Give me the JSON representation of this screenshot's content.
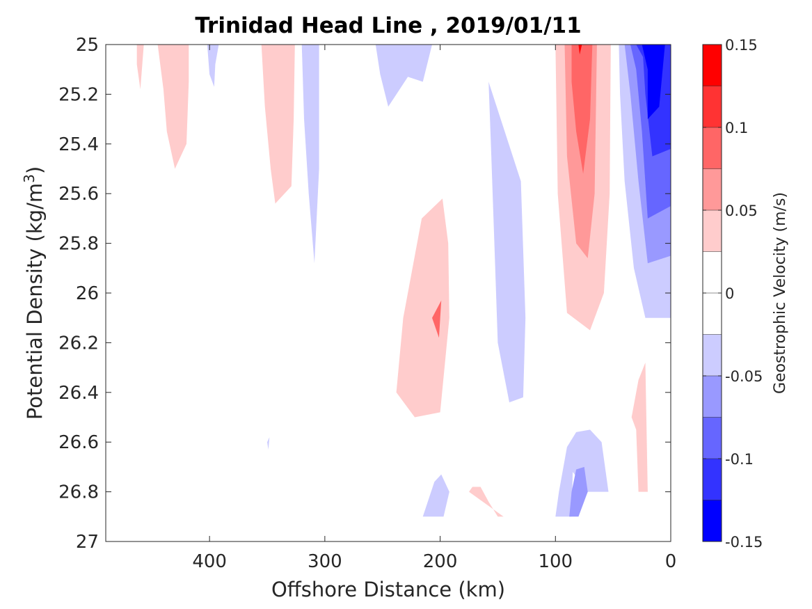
{
  "chart_data": {
    "type": "contour",
    "title": "Trinidad Head Line , 2019/01/11",
    "xlabel": "Offshore Distance (km)",
    "ylabel_main": "Potential Density (kg/m",
    "ylabel_sup": "3",
    "ylabel_close": ")",
    "xlim": [
      490,
      0
    ],
    "ylim": [
      25,
      27
    ],
    "x_reversed": true,
    "y_reversed": true,
    "x_ticks": [
      400,
      300,
      200,
      100,
      0
    ],
    "x_tick_labels": [
      "400",
      "300",
      "200",
      "100",
      "0"
    ],
    "y_ticks": [
      25,
      25.2,
      25.4,
      25.6,
      25.8,
      26,
      26.2,
      26.4,
      26.6,
      26.8,
      27
    ],
    "y_tick_labels": [
      "25",
      "25.2",
      "25.4",
      "25.6",
      "25.8",
      "26",
      "26.2",
      "26.4",
      "26.6",
      "26.8",
      "27"
    ],
    "colorbar": {
      "label": "Geostrophic Velocity (m/s)",
      "range": [
        -0.15,
        0.15
      ],
      "tick_values": [
        0.15,
        0.1,
        0.05,
        0,
        -0.05,
        -0.1,
        -0.15
      ],
      "tick_labels": [
        "0.15",
        "0.1",
        "0.05",
        "0",
        "-0.05",
        "-0.1",
        "-0.15"
      ],
      "levels": [
        {
          "min": 0.125,
          "max": 0.15,
          "color": "#ff0000"
        },
        {
          "min": 0.1,
          "max": 0.125,
          "color": "#ff3333"
        },
        {
          "min": 0.075,
          "max": 0.1,
          "color": "#ff6666"
        },
        {
          "min": 0.05,
          "max": 0.075,
          "color": "#ff9999"
        },
        {
          "min": 0.025,
          "max": 0.05,
          "color": "#ffcccc"
        },
        {
          "min": 0.0,
          "max": 0.025,
          "color": "#ffffff"
        },
        {
          "min": -0.025,
          "max": 0.0,
          "color": "#ffffff"
        },
        {
          "min": -0.05,
          "max": -0.025,
          "color": "#ccccff"
        },
        {
          "min": -0.075,
          "max": -0.05,
          "color": "#9999ff"
        },
        {
          "min": -0.1,
          "max": -0.075,
          "color": "#6666ff"
        },
        {
          "min": -0.125,
          "max": -0.1,
          "color": "#3333ff"
        },
        {
          "min": -0.15,
          "max": -0.125,
          "color": "#0000ff"
        }
      ]
    },
    "regions": [
      {
        "v": 0.04,
        "pts": [
          [
            463,
            25
          ],
          [
            457,
            25
          ],
          [
            460,
            25.18
          ],
          [
            463,
            25.08
          ]
        ]
      },
      {
        "v": 0.04,
        "pts": [
          [
            445,
            25
          ],
          [
            418,
            25
          ],
          [
            418,
            25.15
          ],
          [
            420,
            25.4
          ],
          [
            430,
            25.5
          ],
          [
            437,
            25.35
          ],
          [
            440,
            25.18
          ]
        ]
      },
      {
        "v": -0.04,
        "pts": [
          [
            402,
            25
          ],
          [
            392,
            25
          ],
          [
            395,
            25.08
          ],
          [
            396,
            25.17
          ],
          [
            400,
            25.12
          ]
        ]
      },
      {
        "v": 0.04,
        "pts": [
          [
            355,
            25
          ],
          [
            326,
            25
          ],
          [
            327,
            25.3
          ],
          [
            329,
            25.57
          ],
          [
            343,
            25.64
          ],
          [
            347,
            25.5
          ],
          [
            352,
            25.25
          ]
        ]
      },
      {
        "v": -0.04,
        "pts": [
          [
            320,
            25
          ],
          [
            305,
            25
          ],
          [
            305,
            25.5
          ],
          [
            309,
            25.88
          ],
          [
            314,
            25.6
          ],
          [
            318,
            25.3
          ]
        ]
      },
      {
        "v": -0.04,
        "pts": [
          [
            256,
            25
          ],
          [
            207,
            25
          ],
          [
            215,
            25.15
          ],
          [
            228,
            25.13
          ],
          [
            245,
            25.25
          ],
          [
            252,
            25.12
          ]
        ]
      },
      {
        "v": -0.04,
        "pts": [
          [
            158,
            25.15
          ],
          [
            130,
            25.55
          ],
          [
            126,
            26.1
          ],
          [
            128,
            26.42
          ],
          [
            140,
            26.44
          ],
          [
            150,
            26.2
          ],
          [
            153,
            25.8
          ],
          [
            156,
            25.4
          ]
        ]
      },
      {
        "v": 0.04,
        "pts": [
          [
            198,
            25.62
          ],
          [
            216,
            25.7
          ],
          [
            232,
            26.1
          ],
          [
            238,
            26.4
          ],
          [
            222,
            26.5
          ],
          [
            200,
            26.48
          ],
          [
            192,
            26.1
          ],
          [
            193,
            25.8
          ]
        ]
      },
      {
        "v": 0.075,
        "pts": [
          [
            199,
            26.03
          ],
          [
            207,
            26.1
          ],
          [
            201,
            26.18
          ]
        ]
      },
      {
        "v": 0.04,
        "pts": [
          [
            100,
            25
          ],
          [
            52,
            25
          ],
          [
            53,
            25.6
          ],
          [
            58,
            26.0
          ],
          [
            70,
            26.15
          ],
          [
            90,
            26.08
          ],
          [
            98,
            25.6
          ]
        ]
      },
      {
        "v": 0.065,
        "pts": [
          [
            92,
            25
          ],
          [
            64,
            25
          ],
          [
            66,
            25.6
          ],
          [
            72,
            25.86
          ],
          [
            82,
            25.8
          ],
          [
            90,
            25.45
          ]
        ]
      },
      {
        "v": 0.085,
        "pts": [
          [
            86,
            25
          ],
          [
            68,
            25
          ],
          [
            70,
            25.3
          ],
          [
            76,
            25.52
          ],
          [
            82,
            25.35
          ],
          [
            86,
            25.15
          ]
        ]
      },
      {
        "v": 0.13,
        "pts": [
          [
            80,
            25
          ],
          [
            77,
            25
          ],
          [
            79,
            25.04
          ]
        ]
      },
      {
        "v": -0.04,
        "pts": [
          [
            45,
            25
          ],
          [
            0,
            25
          ],
          [
            0,
            26.1
          ],
          [
            22,
            26.1
          ],
          [
            32,
            25.9
          ],
          [
            40,
            25.55
          ],
          [
            44,
            25.2
          ]
        ]
      },
      {
        "v": -0.065,
        "pts": [
          [
            40,
            25
          ],
          [
            0,
            25
          ],
          [
            0,
            25.85
          ],
          [
            20,
            25.88
          ],
          [
            28,
            25.55
          ],
          [
            35,
            25.2
          ]
        ]
      },
      {
        "v": -0.09,
        "pts": [
          [
            35,
            25
          ],
          [
            0,
            25
          ],
          [
            0,
            25.65
          ],
          [
            20,
            25.7
          ],
          [
            25,
            25.35
          ],
          [
            30,
            25.1
          ]
        ]
      },
      {
        "v": -0.12,
        "pts": [
          [
            30,
            25
          ],
          [
            0,
            25
          ],
          [
            0,
            25.42
          ],
          [
            16,
            25.45
          ],
          [
            22,
            25.2
          ],
          [
            24,
            25.05
          ]
        ]
      },
      {
        "v": -0.14,
        "pts": [
          [
            25,
            25
          ],
          [
            5,
            25
          ],
          [
            10,
            25.25
          ],
          [
            20,
            25.3
          ],
          [
            20,
            25.1
          ]
        ]
      },
      {
        "v": 0.04,
        "pts": [
          [
            22,
            26.28
          ],
          [
            20,
            26.8
          ],
          [
            28,
            26.8
          ],
          [
            30,
            26.55
          ],
          [
            34,
            26.5
          ],
          [
            28,
            26.35
          ]
        ]
      },
      {
        "v": -0.04,
        "pts": [
          [
            350,
            26.6
          ],
          [
            348,
            26.58
          ],
          [
            349,
            26.63
          ]
        ]
      },
      {
        "v": -0.04,
        "pts": [
          [
            100,
            26.9
          ],
          [
            86,
            26.9
          ],
          [
            85,
            26.72
          ],
          [
            72,
            26.8
          ],
          [
            54,
            26.8
          ],
          [
            60,
            26.6
          ],
          [
            70,
            26.55
          ],
          [
            82,
            26.56
          ],
          [
            90,
            26.62
          ],
          [
            97,
            26.8
          ]
        ]
      },
      {
        "v": -0.065,
        "pts": [
          [
            88,
            26.9
          ],
          [
            80,
            26.9
          ],
          [
            72,
            26.8
          ],
          [
            75,
            26.7
          ],
          [
            82,
            26.71
          ],
          [
            86,
            26.8
          ]
        ]
      },
      {
        "v": 0.04,
        "pts": [
          [
            175,
            26.8
          ],
          [
            145,
            26.9
          ],
          [
            150,
            26.9
          ],
          [
            158,
            26.84
          ],
          [
            165,
            26.78
          ],
          [
            172,
            26.78
          ]
        ]
      },
      {
        "v": -0.04,
        "pts": [
          [
            215,
            26.9
          ],
          [
            197,
            26.9
          ],
          [
            192,
            26.8
          ],
          [
            199,
            26.73
          ],
          [
            205,
            26.76
          ]
        ]
      }
    ]
  }
}
